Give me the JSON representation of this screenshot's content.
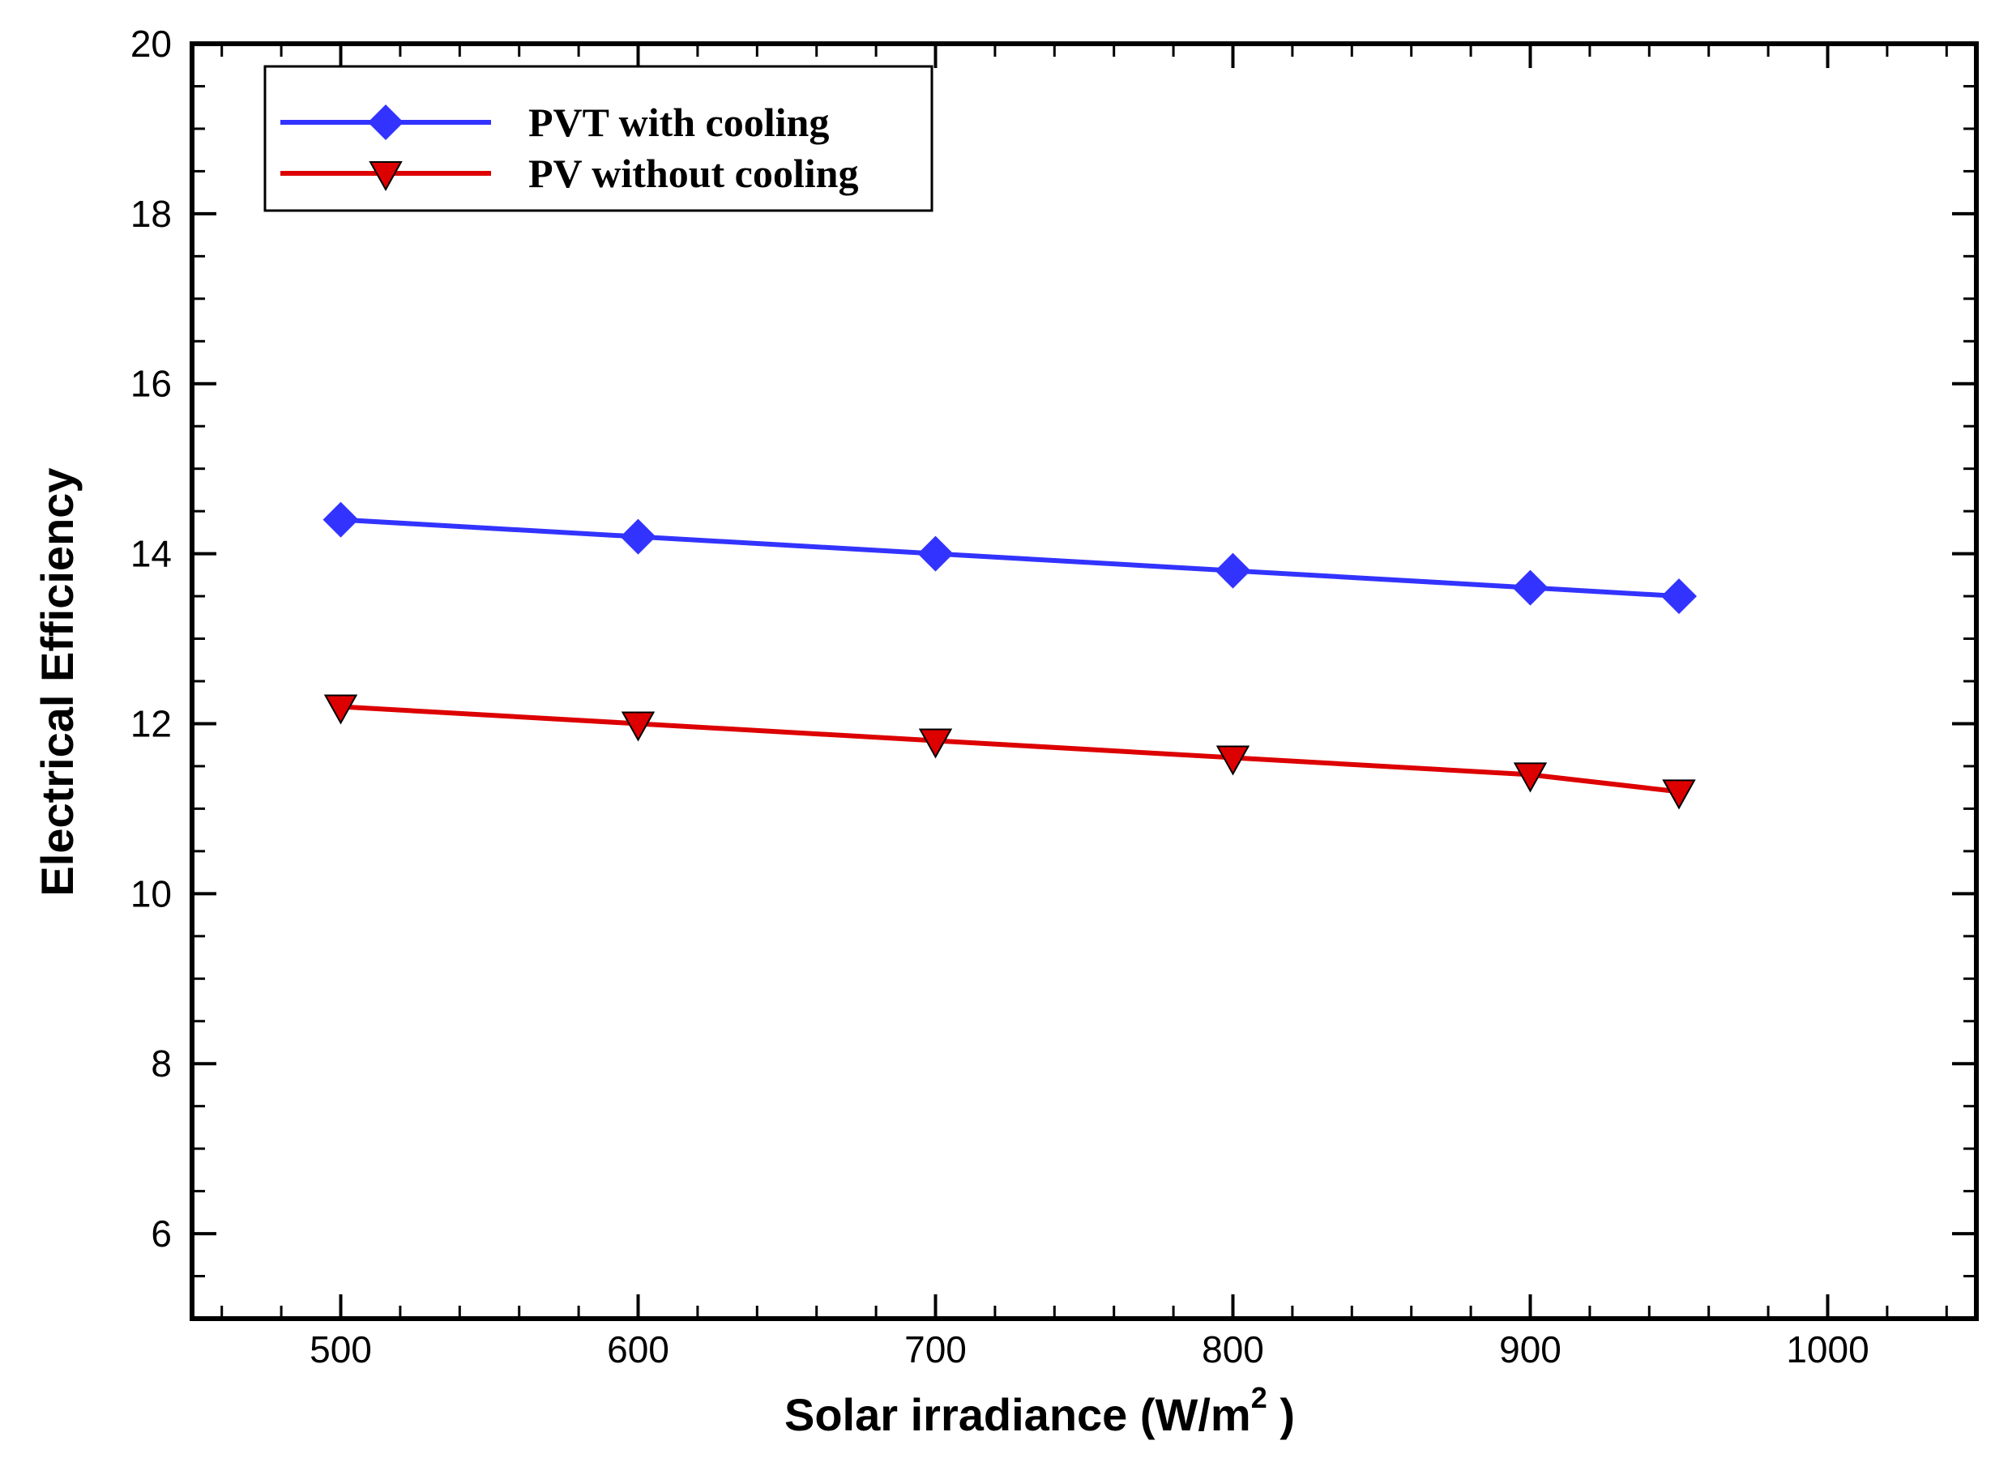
{
  "chart_data": {
    "type": "line",
    "title": "",
    "xlabel": "Solar irradiance (W/m",
    "xlabel_superscript": "2",
    "xlabel_suffix": " )",
    "ylabel": "Electrical Efficiency",
    "xlim": [
      450,
      1050
    ],
    "ylim": [
      5,
      20
    ],
    "x_ticks": [
      500,
      600,
      700,
      800,
      900,
      1000
    ],
    "x_tick_labels": [
      "500",
      "600",
      "700",
      "800",
      "900",
      "1000"
    ],
    "x_minor_step": 20,
    "y_ticks": [
      6,
      8,
      10,
      12,
      14,
      16,
      18,
      20
    ],
    "y_tick_labels": [
      "6",
      "8",
      "10",
      "12",
      "14",
      "16",
      "18",
      "20"
    ],
    "y_minor_step": 0.5,
    "grid": false,
    "legend_position": "top-left",
    "x": [
      500,
      600,
      700,
      800,
      900,
      950
    ],
    "series": [
      {
        "name": "PVT with cooling",
        "color": "#3333ff",
        "marker": "diamond",
        "values": [
          14.4,
          14.2,
          14.0,
          13.8,
          13.6,
          13.5
        ]
      },
      {
        "name": "PV without cooling",
        "color": "#dd0000",
        "marker": "triangle-down",
        "values": [
          12.2,
          12.0,
          11.8,
          11.6,
          11.4,
          11.2
        ]
      }
    ]
  }
}
